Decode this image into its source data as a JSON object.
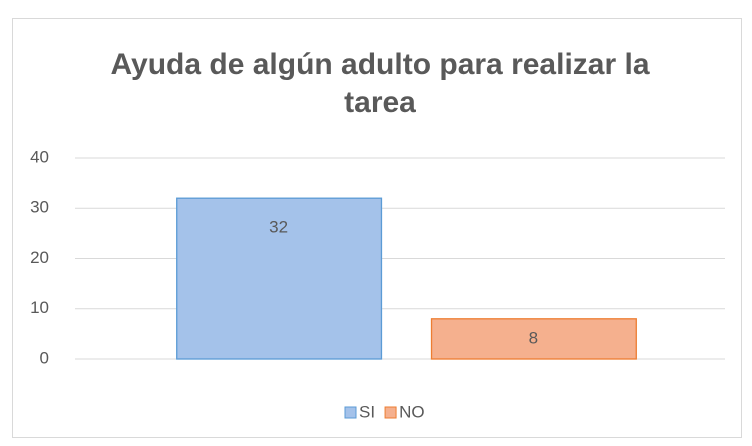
{
  "chart_data": {
    "type": "bar",
    "title": "Ayuda de algún adulto para realizar la tarea",
    "categories": [
      null
    ],
    "series": [
      {
        "name": "SI",
        "color": "#a4c2ea",
        "edge_color": "#5b9bd5",
        "values": [
          32
        ]
      },
      {
        "name": "NO",
        "color": "#f5b08e",
        "edge_color": "#ed7d31",
        "values": [
          8
        ]
      }
    ],
    "ylim": [
      0,
      40
    ],
    "yticks": [
      0,
      10,
      20,
      30,
      40
    ],
    "grid": true,
    "legend": "bottom",
    "data_labels": true
  }
}
